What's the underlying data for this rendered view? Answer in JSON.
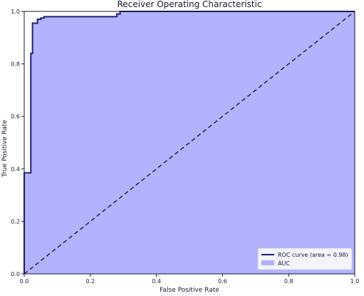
{
  "chart_data": {
    "type": "area",
    "title": "Receiver Operating Characteristic",
    "xlabel": "False Positive Rate",
    "ylabel": "True Positive Rate",
    "xlim": [
      0.0,
      1.0
    ],
    "ylim": [
      0.0,
      1.0
    ],
    "xticks": [
      "0.0",
      "0.2",
      "0.4",
      "0.6",
      "0.8",
      "1.0"
    ],
    "yticks": [
      "0.0",
      "0.2",
      "0.4",
      "0.6",
      "0.8",
      "1.0"
    ],
    "grid": false,
    "legend_position": "lower-right",
    "series": [
      {
        "name": "ROC curve (area = 0.98)",
        "style": "line",
        "color": "#1f1f7a",
        "x": [
          0.0,
          0.0,
          0.02,
          0.02,
          0.025,
          0.025,
          0.03,
          0.03,
          0.04,
          0.04,
          0.05,
          0.05,
          0.06,
          0.06,
          0.28,
          0.28,
          0.29,
          0.29,
          1.0
        ],
        "y": [
          0.0,
          0.385,
          0.385,
          0.84,
          0.84,
          0.955,
          0.955,
          0.955,
          0.955,
          0.97,
          0.97,
          0.975,
          0.975,
          0.98,
          0.98,
          0.99,
          0.99,
          1.0,
          1.0
        ]
      },
      {
        "name": "AUC",
        "style": "fill",
        "color": "#b2b2ff"
      },
      {
        "name": "",
        "style": "dashed",
        "color": "#2b2b55",
        "x": [
          0.0,
          1.0
        ],
        "y": [
          0.0,
          1.0
        ]
      }
    ]
  }
}
